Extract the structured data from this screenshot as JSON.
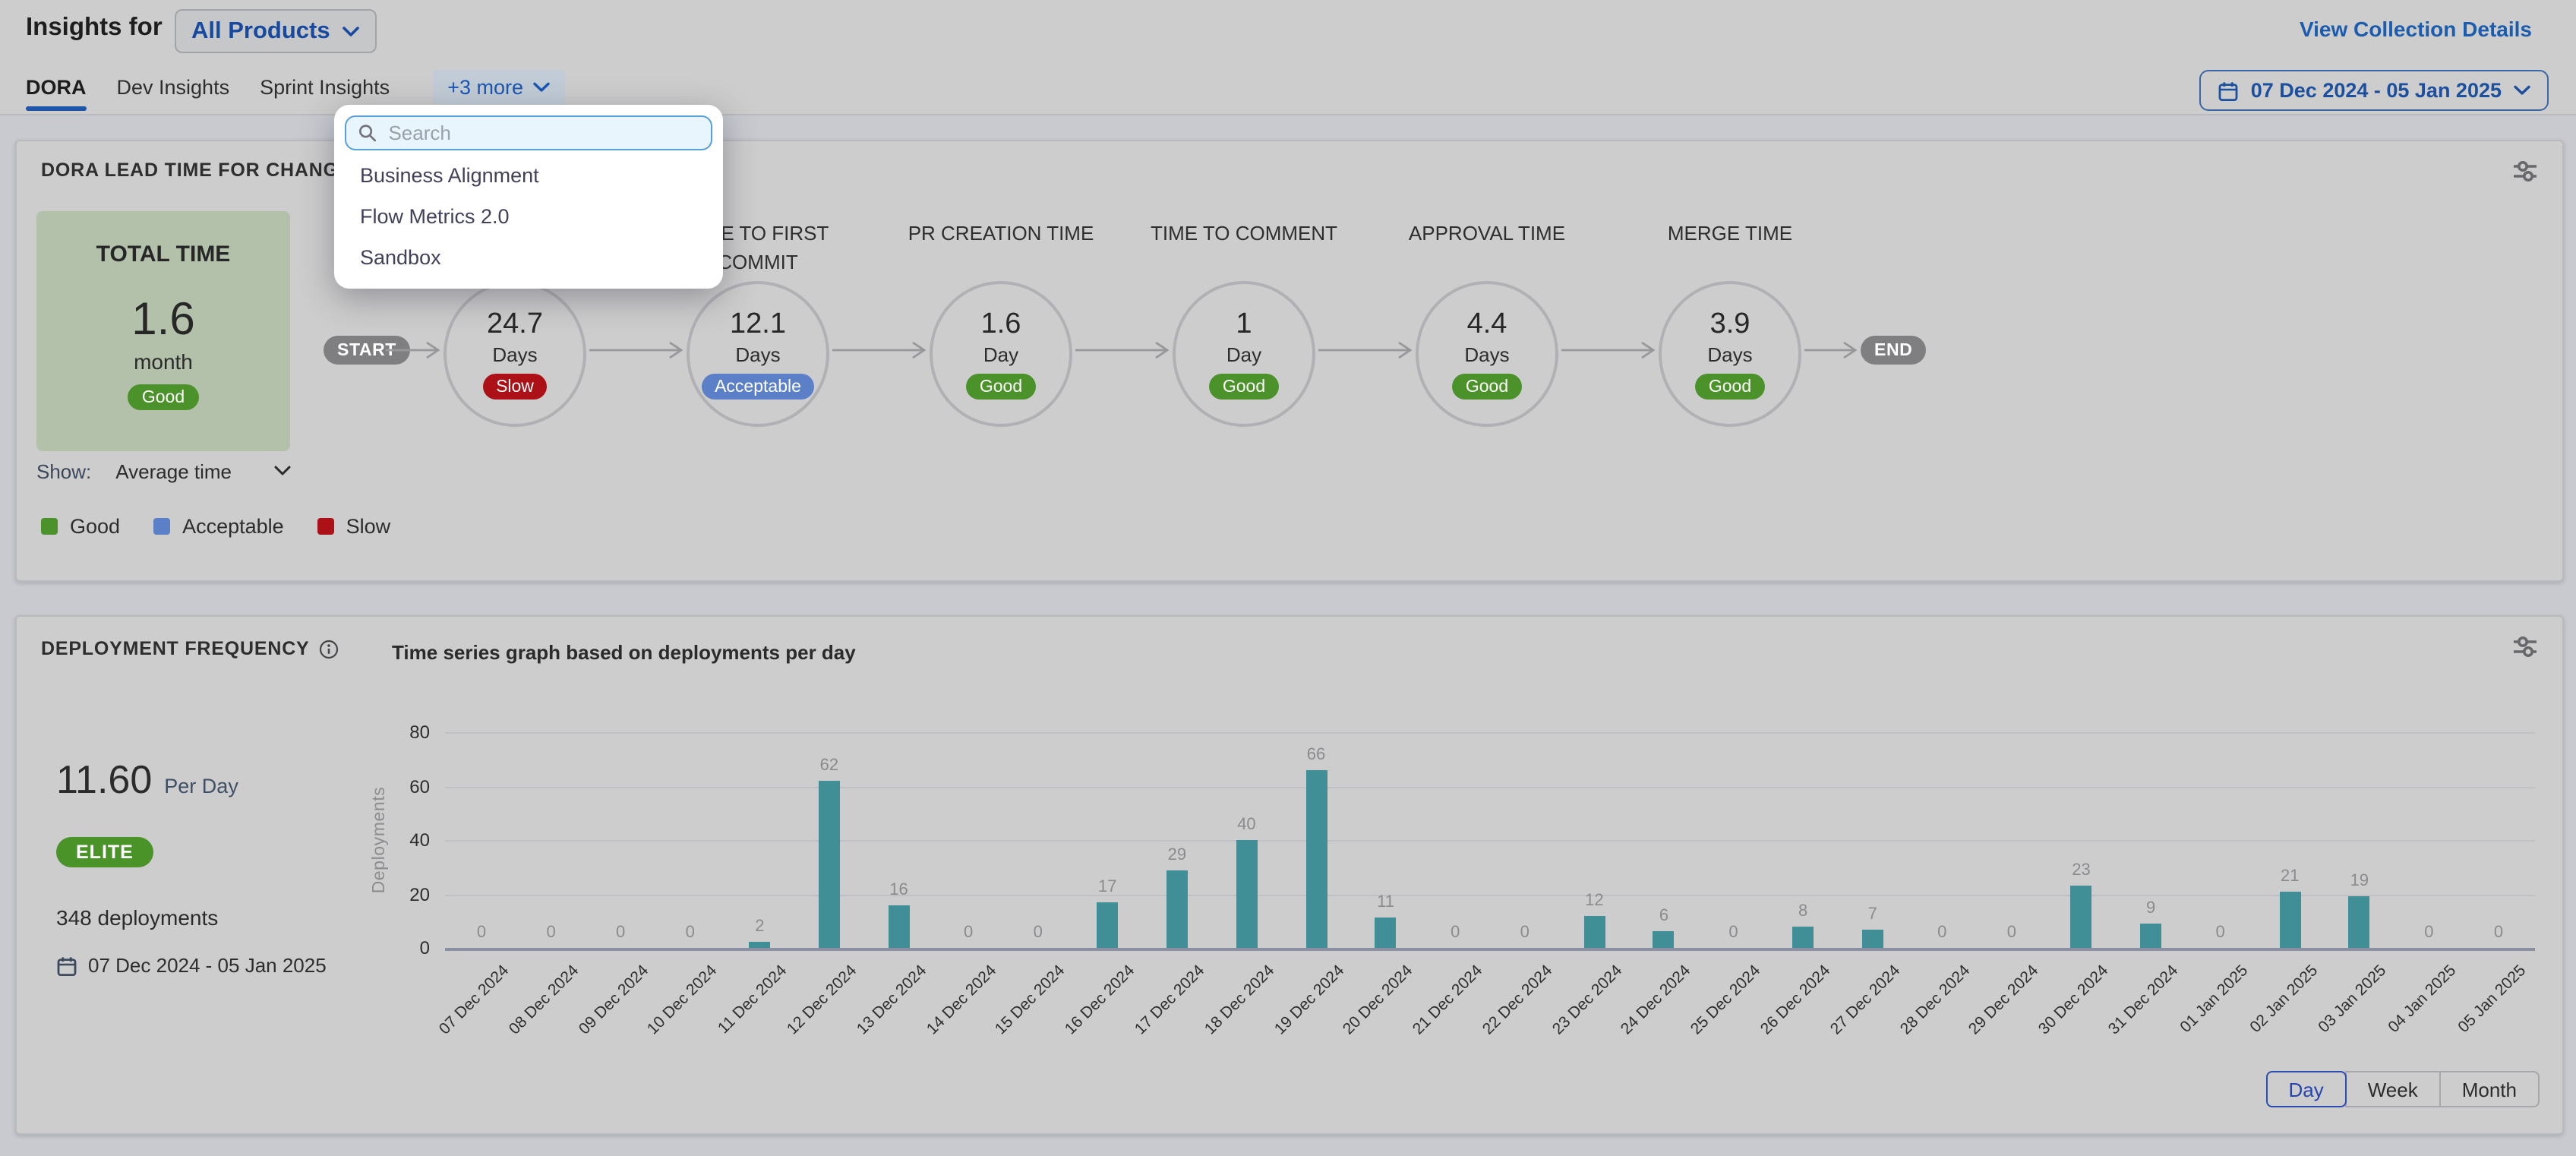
{
  "page": {
    "header": {
      "title_prefix": "Insights for",
      "collection_selector": "All Products",
      "view_collection_details": "View Collection Details"
    },
    "tabs": [
      {
        "label": "DORA",
        "active": true
      },
      {
        "label": "Dev Insights",
        "active": false
      },
      {
        "label": "Sprint Insights",
        "active": false
      }
    ],
    "more_tabs_label": "+3 more",
    "date_range_picker": "07 Dec 2024 - 05 Jan 2025",
    "tab_dropdown": {
      "search_placeholder": "Search",
      "items": [
        "Business Alignment",
        "Flow Metrics 2.0",
        "Sandbox"
      ]
    }
  },
  "lead_time_card": {
    "title": "DORA LEAD TIME FOR CHANGES REPORT",
    "total_box": {
      "label": "TOTAL TIME",
      "value": "1.6",
      "unit": "month",
      "status": "Good"
    },
    "pipeline": {
      "start_label": "START",
      "end_label": "END",
      "stages": [
        {
          "label": "",
          "value": "24.7",
          "unit": "Days",
          "status": "Slow"
        },
        {
          "label": "TIME TO FIRST COMMIT",
          "value": "12.1",
          "unit": "Days",
          "status": "Acceptable"
        },
        {
          "label": "PR CREATION TIME",
          "value": "1.6",
          "unit": "Day",
          "status": "Good"
        },
        {
          "label": "TIME TO COMMENT",
          "value": "1",
          "unit": "Day",
          "status": "Good"
        },
        {
          "label": "APPROVAL TIME",
          "value": "4.4",
          "unit": "Days",
          "status": "Good"
        },
        {
          "label": "MERGE TIME",
          "value": "3.9",
          "unit": "Days",
          "status": "Good"
        }
      ]
    },
    "show_control": {
      "label": "Show:",
      "value": "Average time"
    },
    "legend": [
      {
        "label": "Good",
        "status": "Good"
      },
      {
        "label": "Acceptable",
        "status": "Acceptable"
      },
      {
        "label": "Slow",
        "status": "Slow"
      }
    ]
  },
  "deployment_card": {
    "title": "DEPLOYMENT FREQUENCY",
    "subtitle": "Time series graph based on deployments per day",
    "rate_value": "11.60",
    "rate_unit": "Per Day",
    "performance_badge": "ELITE",
    "deployments_total": "348 deployments",
    "date_range": "07 Dec 2024 - 05 Jan 2025",
    "granularity_options": [
      {
        "label": "Day",
        "active": true
      },
      {
        "label": "Week",
        "active": false
      },
      {
        "label": "Month",
        "active": false
      }
    ]
  },
  "chart_data": {
    "type": "bar",
    "title": "Time series graph based on deployments per day",
    "xlabel": "",
    "ylabel": "Deployments",
    "ylim": [
      0,
      80
    ],
    "yticks": [
      0,
      20,
      40,
      60,
      80
    ],
    "grid": true,
    "legend_position": "none",
    "bar_color": "#418f96",
    "categories": [
      "07 Dec 2024",
      "08 Dec 2024",
      "09 Dec 2024",
      "10 Dec 2024",
      "11 Dec 2024",
      "12 Dec 2024",
      "13 Dec 2024",
      "14 Dec 2024",
      "15 Dec 2024",
      "16 Dec 2024",
      "17 Dec 2024",
      "18 Dec 2024",
      "19 Dec 2024",
      "20 Dec 2024",
      "21 Dec 2024",
      "22 Dec 2024",
      "23 Dec 2024",
      "24 Dec 2024",
      "25 Dec 2024",
      "26 Dec 2024",
      "27 Dec 2024",
      "28 Dec 2024",
      "29 Dec 2024",
      "30 Dec 2024",
      "31 Dec 2024",
      "01 Jan 2025",
      "02 Jan 2025",
      "03 Jan 2025",
      "04 Jan 2025",
      "05 Jan 2025"
    ],
    "values": [
      0,
      0,
      0,
      0,
      2,
      62,
      16,
      0,
      0,
      17,
      29,
      40,
      66,
      11,
      0,
      0,
      12,
      6,
      0,
      8,
      7,
      0,
      0,
      23,
      9,
      0,
      21,
      19,
      0,
      0
    ]
  },
  "status_colors": {
    "Good": "#4a9229",
    "Acceptable": "#5b80c8",
    "Slow": "#ac1117"
  }
}
